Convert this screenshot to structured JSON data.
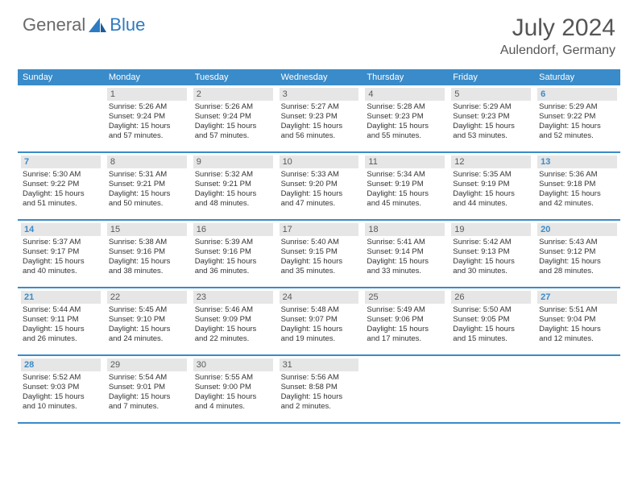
{
  "logo": {
    "general": "General",
    "blue": "Blue"
  },
  "title": "July 2024",
  "location": "Aulendorf, Germany",
  "colors": {
    "header_bg": "#3a8bc9",
    "header_text": "#ffffff",
    "daynum_bg": "#e6e6e6",
    "daynum_text": "#5a5a5a",
    "weekend_text": "#3a8bc9",
    "body_text": "#333333",
    "rule": "#3a8bc9"
  },
  "day_headers": [
    "Sunday",
    "Monday",
    "Tuesday",
    "Wednesday",
    "Thursday",
    "Friday",
    "Saturday"
  ],
  "weeks": [
    [
      null,
      {
        "n": "1",
        "sr": "Sunrise: 5:26 AM",
        "ss": "Sunset: 9:24 PM",
        "d1": "Daylight: 15 hours",
        "d2": "and 57 minutes."
      },
      {
        "n": "2",
        "sr": "Sunrise: 5:26 AM",
        "ss": "Sunset: 9:24 PM",
        "d1": "Daylight: 15 hours",
        "d2": "and 57 minutes."
      },
      {
        "n": "3",
        "sr": "Sunrise: 5:27 AM",
        "ss": "Sunset: 9:23 PM",
        "d1": "Daylight: 15 hours",
        "d2": "and 56 minutes."
      },
      {
        "n": "4",
        "sr": "Sunrise: 5:28 AM",
        "ss": "Sunset: 9:23 PM",
        "d1": "Daylight: 15 hours",
        "d2": "and 55 minutes."
      },
      {
        "n": "5",
        "sr": "Sunrise: 5:29 AM",
        "ss": "Sunset: 9:23 PM",
        "d1": "Daylight: 15 hours",
        "d2": "and 53 minutes."
      },
      {
        "n": "6",
        "sr": "Sunrise: 5:29 AM",
        "ss": "Sunset: 9:22 PM",
        "d1": "Daylight: 15 hours",
        "d2": "and 52 minutes."
      }
    ],
    [
      {
        "n": "7",
        "sr": "Sunrise: 5:30 AM",
        "ss": "Sunset: 9:22 PM",
        "d1": "Daylight: 15 hours",
        "d2": "and 51 minutes."
      },
      {
        "n": "8",
        "sr": "Sunrise: 5:31 AM",
        "ss": "Sunset: 9:21 PM",
        "d1": "Daylight: 15 hours",
        "d2": "and 50 minutes."
      },
      {
        "n": "9",
        "sr": "Sunrise: 5:32 AM",
        "ss": "Sunset: 9:21 PM",
        "d1": "Daylight: 15 hours",
        "d2": "and 48 minutes."
      },
      {
        "n": "10",
        "sr": "Sunrise: 5:33 AM",
        "ss": "Sunset: 9:20 PM",
        "d1": "Daylight: 15 hours",
        "d2": "and 47 minutes."
      },
      {
        "n": "11",
        "sr": "Sunrise: 5:34 AM",
        "ss": "Sunset: 9:19 PM",
        "d1": "Daylight: 15 hours",
        "d2": "and 45 minutes."
      },
      {
        "n": "12",
        "sr": "Sunrise: 5:35 AM",
        "ss": "Sunset: 9:19 PM",
        "d1": "Daylight: 15 hours",
        "d2": "and 44 minutes."
      },
      {
        "n": "13",
        "sr": "Sunrise: 5:36 AM",
        "ss": "Sunset: 9:18 PM",
        "d1": "Daylight: 15 hours",
        "d2": "and 42 minutes."
      }
    ],
    [
      {
        "n": "14",
        "sr": "Sunrise: 5:37 AM",
        "ss": "Sunset: 9:17 PM",
        "d1": "Daylight: 15 hours",
        "d2": "and 40 minutes."
      },
      {
        "n": "15",
        "sr": "Sunrise: 5:38 AM",
        "ss": "Sunset: 9:16 PM",
        "d1": "Daylight: 15 hours",
        "d2": "and 38 minutes."
      },
      {
        "n": "16",
        "sr": "Sunrise: 5:39 AM",
        "ss": "Sunset: 9:16 PM",
        "d1": "Daylight: 15 hours",
        "d2": "and 36 minutes."
      },
      {
        "n": "17",
        "sr": "Sunrise: 5:40 AM",
        "ss": "Sunset: 9:15 PM",
        "d1": "Daylight: 15 hours",
        "d2": "and 35 minutes."
      },
      {
        "n": "18",
        "sr": "Sunrise: 5:41 AM",
        "ss": "Sunset: 9:14 PM",
        "d1": "Daylight: 15 hours",
        "d2": "and 33 minutes."
      },
      {
        "n": "19",
        "sr": "Sunrise: 5:42 AM",
        "ss": "Sunset: 9:13 PM",
        "d1": "Daylight: 15 hours",
        "d2": "and 30 minutes."
      },
      {
        "n": "20",
        "sr": "Sunrise: 5:43 AM",
        "ss": "Sunset: 9:12 PM",
        "d1": "Daylight: 15 hours",
        "d2": "and 28 minutes."
      }
    ],
    [
      {
        "n": "21",
        "sr": "Sunrise: 5:44 AM",
        "ss": "Sunset: 9:11 PM",
        "d1": "Daylight: 15 hours",
        "d2": "and 26 minutes."
      },
      {
        "n": "22",
        "sr": "Sunrise: 5:45 AM",
        "ss": "Sunset: 9:10 PM",
        "d1": "Daylight: 15 hours",
        "d2": "and 24 minutes."
      },
      {
        "n": "23",
        "sr": "Sunrise: 5:46 AM",
        "ss": "Sunset: 9:09 PM",
        "d1": "Daylight: 15 hours",
        "d2": "and 22 minutes."
      },
      {
        "n": "24",
        "sr": "Sunrise: 5:48 AM",
        "ss": "Sunset: 9:07 PM",
        "d1": "Daylight: 15 hours",
        "d2": "and 19 minutes."
      },
      {
        "n": "25",
        "sr": "Sunrise: 5:49 AM",
        "ss": "Sunset: 9:06 PM",
        "d1": "Daylight: 15 hours",
        "d2": "and 17 minutes."
      },
      {
        "n": "26",
        "sr": "Sunrise: 5:50 AM",
        "ss": "Sunset: 9:05 PM",
        "d1": "Daylight: 15 hours",
        "d2": "and 15 minutes."
      },
      {
        "n": "27",
        "sr": "Sunrise: 5:51 AM",
        "ss": "Sunset: 9:04 PM",
        "d1": "Daylight: 15 hours",
        "d2": "and 12 minutes."
      }
    ],
    [
      {
        "n": "28",
        "sr": "Sunrise: 5:52 AM",
        "ss": "Sunset: 9:03 PM",
        "d1": "Daylight: 15 hours",
        "d2": "and 10 minutes."
      },
      {
        "n": "29",
        "sr": "Sunrise: 5:54 AM",
        "ss": "Sunset: 9:01 PM",
        "d1": "Daylight: 15 hours",
        "d2": "and 7 minutes."
      },
      {
        "n": "30",
        "sr": "Sunrise: 5:55 AM",
        "ss": "Sunset: 9:00 PM",
        "d1": "Daylight: 15 hours",
        "d2": "and 4 minutes."
      },
      {
        "n": "31",
        "sr": "Sunrise: 5:56 AM",
        "ss": "Sunset: 8:58 PM",
        "d1": "Daylight: 15 hours",
        "d2": "and 2 minutes."
      },
      null,
      null,
      null
    ]
  ]
}
